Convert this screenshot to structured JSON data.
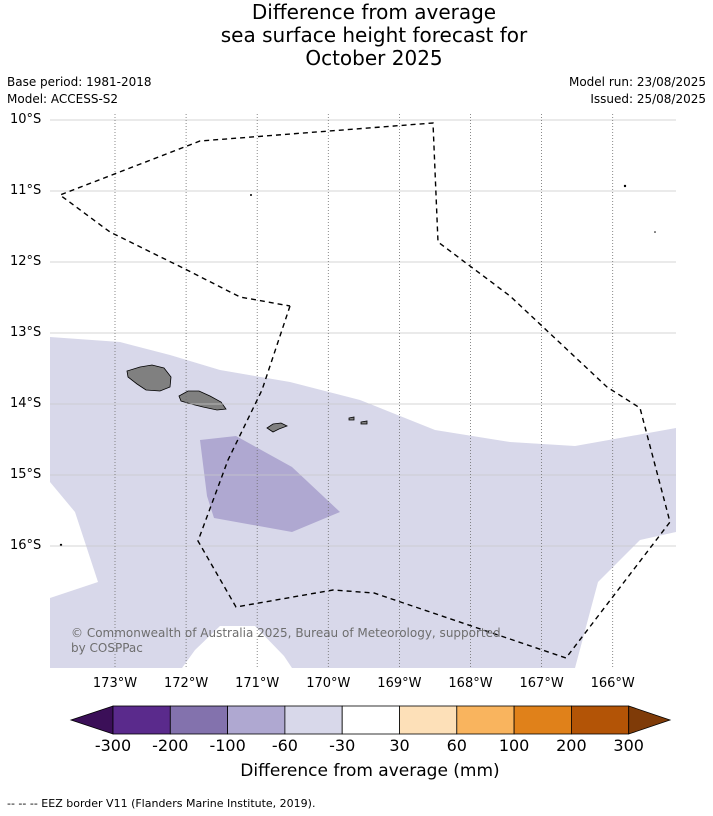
{
  "header": {
    "title_lines": [
      "Difference from average",
      "sea surface height forecast for",
      "October 2025"
    ],
    "base_period": "Base period: 1981-2018",
    "model": "Model: ACCESS-S2",
    "model_run": "Model run: 23/08/2025",
    "issued": "Issued: 25/08/2025"
  },
  "map": {
    "lat_labels": [
      "10°S",
      "11°S",
      "12°S",
      "13°S",
      "14°S",
      "15°S",
      "16°S"
    ],
    "lon_labels": [
      "173°W",
      "172°W",
      "171°W",
      "170°W",
      "169°W",
      "168°W",
      "167°W",
      "166°W"
    ],
    "copyright": [
      "© Commonwealth of Australia 2025, Bureau of Meteorology, supported",
      "by COSPPac"
    ]
  },
  "colorbar": {
    "title": "Difference from average (mm)",
    "tick_labels": [
      "-300",
      "-200",
      "-100",
      "-60",
      "-30",
      "30",
      "60",
      "100",
      "200",
      "300"
    ],
    "colors": [
      "#3b0f58",
      "#5a2a8c",
      "#8372ad",
      "#afa8d1",
      "#d8d8ea",
      "#ffffff",
      "#fde0b8",
      "#f9b45e",
      "#e0811a",
      "#b35406",
      "#7f3b08"
    ]
  },
  "legend": {
    "eez": "--  --  -- EEZ border V11 (Flanders Marine Institute, 2019)."
  }
}
